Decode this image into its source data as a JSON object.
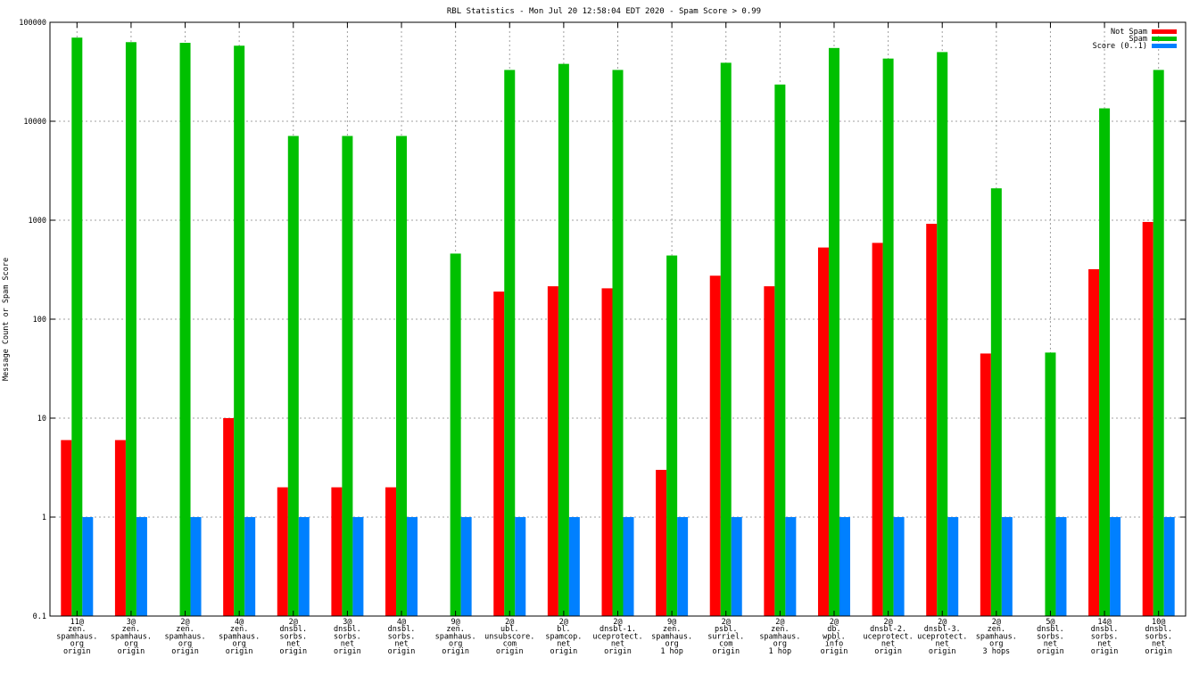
{
  "chart_data": {
    "type": "bar",
    "title": "RBL Statistics - Mon Jul 20 12:58:04 EDT 2020 - Spam Score > 0.99",
    "ylabel": "Message Count or Spam Score",
    "xlabel": "",
    "yscale": "log",
    "ylim": [
      0.1,
      100000
    ],
    "yticks": [
      "0.1",
      "1",
      "10",
      "100",
      "1000",
      "10000",
      "100000"
    ],
    "grid": true,
    "legend_position": "top-right",
    "categories": [
      [
        "11@",
        "zen.",
        "spamhaus.",
        "org",
        "origin"
      ],
      [
        "3@",
        "zen.",
        "spamhaus.",
        "org",
        "origin"
      ],
      [
        "2@",
        "zen.",
        "spamhaus.",
        "org",
        "origin"
      ],
      [
        "4@",
        "zen.",
        "spamhaus.",
        "org",
        "origin"
      ],
      [
        "2@",
        "dnsbl.",
        "sorbs.",
        "net",
        "origin"
      ],
      [
        "3@",
        "dnsbl.",
        "sorbs.",
        "net",
        "origin"
      ],
      [
        "4@",
        "dnsbl.",
        "sorbs.",
        "net",
        "origin"
      ],
      [
        "9@",
        "zen.",
        "spamhaus.",
        "org",
        "origin"
      ],
      [
        "2@",
        "ubl.",
        "unsubscore.",
        "com",
        "origin"
      ],
      [
        "2@",
        "bl.",
        "spamcop.",
        "net",
        "origin"
      ],
      [
        "2@",
        "dnsbl-1.",
        "uceprotect.",
        "net",
        "origin"
      ],
      [
        "9@",
        "zen.",
        "spamhaus.",
        "org",
        "1 hop"
      ],
      [
        "2@",
        "psbl.",
        "surriel.",
        "com",
        "origin"
      ],
      [
        "2@",
        "zen.",
        "spamhaus.",
        "org",
        "1 hop"
      ],
      [
        "2@",
        "db.",
        "wpbl.",
        "info",
        "origin"
      ],
      [
        "2@",
        "dnsbl-2.",
        "uceprotect.",
        "net",
        "origin"
      ],
      [
        "2@",
        "dnsbl-3.",
        "uceprotect.",
        "net",
        "origin"
      ],
      [
        "2@",
        "zen.",
        "spamhaus.",
        "org",
        "3 hops"
      ],
      [
        "5@",
        "dnsbl.",
        "sorbs.",
        "net",
        "origin"
      ],
      [
        "14@",
        "dnsbl.",
        "sorbs.",
        "net",
        "origin"
      ],
      [
        "10@",
        "dnsbl.",
        "sorbs.",
        "net",
        "origin"
      ]
    ],
    "series": [
      {
        "name": "Not Spam",
        "color": "#ff0000",
        "values": [
          6,
          6,
          null,
          10,
          2,
          2,
          2,
          null,
          190,
          215,
          205,
          3,
          275,
          215,
          530,
          590,
          920,
          45,
          null,
          320,
          960
        ]
      },
      {
        "name": "Spam",
        "color": "#00c000",
        "values": [
          70000,
          63000,
          62000,
          58000,
          7100,
          7100,
          7100,
          460,
          33000,
          38000,
          33000,
          440,
          39000,
          23500,
          55000,
          43000,
          50000,
          2100,
          46,
          13500,
          33000
        ]
      },
      {
        "name": "Score (0..1)",
        "color": "#0080ff",
        "values": [
          1,
          1,
          1,
          1,
          1,
          1,
          1,
          1,
          1,
          1,
          1,
          1,
          1,
          1,
          1,
          1,
          1,
          1,
          1,
          1,
          1
        ]
      }
    ]
  }
}
